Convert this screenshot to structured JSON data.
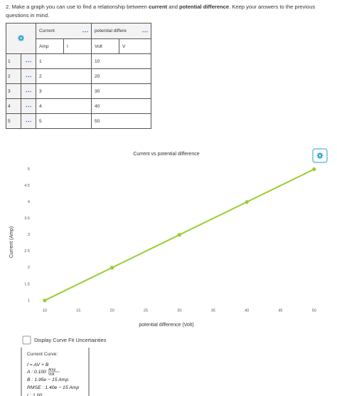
{
  "question": {
    "number": "2.",
    "parts": [
      "Make a graph you can use to find a relationship between ",
      "current",
      " and ",
      "potential difference",
      ". Keep your answers to the previous questions in mind."
    ]
  },
  "table": {
    "columns": [
      {
        "name": "Current",
        "unit": "Amp",
        "symbol": "I"
      },
      {
        "name": "potential differe",
        "unit": "Volt",
        "symbol": "V"
      }
    ],
    "row_numbers": [
      1,
      2,
      3,
      4,
      5
    ],
    "rows": [
      [
        1,
        10
      ],
      [
        2,
        20
      ],
      [
        3,
        30
      ],
      [
        4,
        40
      ],
      [
        5,
        50
      ]
    ]
  },
  "chart_data": {
    "type": "line",
    "title": "Current vs potential difference",
    "x_label": "potential difference (Volt)",
    "y_label": "Current (Amp)",
    "x": [
      10,
      20,
      30,
      40,
      50
    ],
    "series": [
      {
        "name": "Current",
        "color": "#9acd32",
        "values": [
          1,
          2,
          3,
          4,
          5
        ]
      }
    ],
    "xlim": [
      8,
      51.5
    ],
    "ylim": [
      0.8,
      5.1
    ],
    "xticks": [
      10,
      15,
      20,
      25,
      30,
      35,
      40,
      45,
      50
    ],
    "yticks": [
      1,
      1.5,
      2,
      2.5,
      3,
      3.5,
      4,
      4.5,
      5
    ],
    "grid": false
  },
  "fit": {
    "checkbox_label": "Display Curve Fit Uncertainties",
    "heading": "Current Curve:",
    "equation": "I = AV + B",
    "params": [
      {
        "label": "A : 0.100",
        "unit_num": "Amp",
        "unit_den": "Volt"
      },
      {
        "label": "B : 1.95e − 15 Amp"
      },
      {
        "label": "RMSE : 1.40e − 15 Amp"
      },
      {
        "label": "r : 1.00"
      }
    ]
  }
}
